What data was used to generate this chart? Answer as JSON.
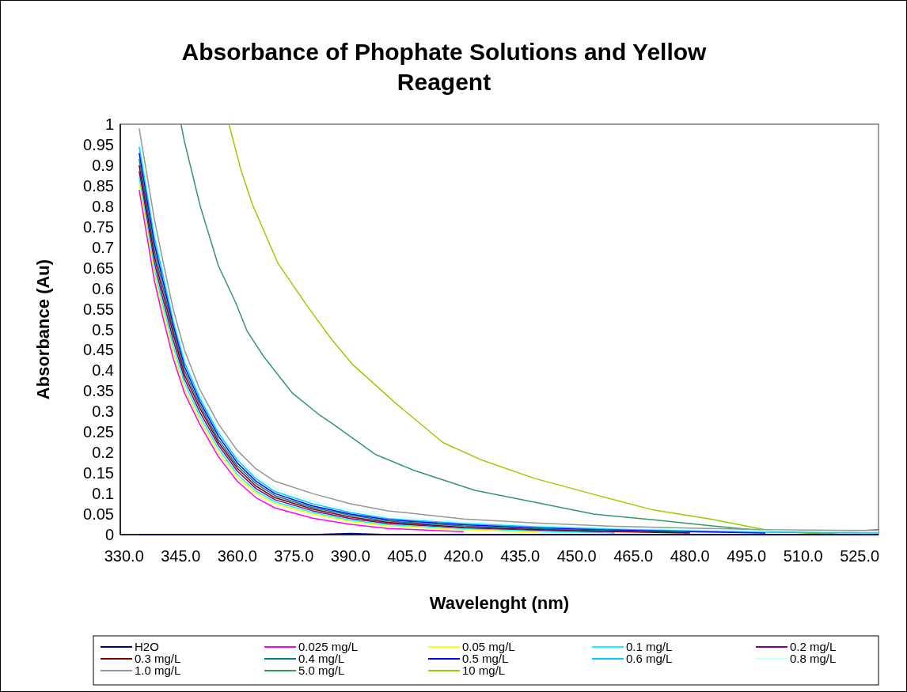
{
  "chart_data": {
    "type": "line",
    "title": "Absorbance of Phophate Solutions and Yellow Reagent",
    "xlabel": "Wavelenght (nm)",
    "ylabel": "Absorbance (Au)",
    "x": [
      334,
      336,
      338,
      340,
      343,
      346,
      350,
      355,
      360,
      365,
      370,
      380,
      390,
      400,
      420,
      440,
      460,
      480,
      500,
      530
    ],
    "xlim": [
      329,
      530
    ],
    "xticks": [
      {
        "value": 330,
        "label": "330.0"
      },
      {
        "value": 345,
        "label": "345.0"
      },
      {
        "value": 360,
        "label": "360.0"
      },
      {
        "value": 375,
        "label": "375.0"
      },
      {
        "value": 390,
        "label": "390.0"
      },
      {
        "value": 405,
        "label": "405.0"
      },
      {
        "value": 420,
        "label": "420.0"
      },
      {
        "value": 435,
        "label": "435.0"
      },
      {
        "value": 450,
        "label": "450.0"
      },
      {
        "value": 465,
        "label": "465.0"
      },
      {
        "value": 480,
        "label": "480.0"
      },
      {
        "value": 495,
        "label": "495.0"
      },
      {
        "value": 510,
        "label": "510.0"
      },
      {
        "value": 525,
        "label": "525.0"
      }
    ],
    "ylim": [
      0,
      1
    ],
    "yticks": [
      0,
      0.05,
      0.1,
      0.15,
      0.2,
      0.25,
      0.3,
      0.35,
      0.4,
      0.45,
      0.5,
      0.55,
      0.6,
      0.65,
      0.7,
      0.75,
      0.8,
      0.85,
      0.9,
      0.95,
      1
    ],
    "grid": false,
    "legend": "bottom",
    "marker": "none",
    "line_style": "solid",
    "series": [
      {
        "name": "H2O",
        "color": "#000080",
        "values": [
          0,
          0,
          0,
          0,
          0,
          0,
          0,
          0,
          0,
          0,
          0,
          0,
          0.003,
          0,
          0,
          0,
          0,
          0,
          0,
          0
        ]
      },
      {
        "name": "0.025 mg/L",
        "color": "#ff00ff",
        "values": [
          0.84,
          0.73,
          0.62,
          0.54,
          0.43,
          0.345,
          0.27,
          0.19,
          0.13,
          0.09,
          0.065,
          0.04,
          0.025,
          0.015,
          0.007,
          null,
          null,
          null,
          null,
          null
        ]
      },
      {
        "name": "0.05 mg/L",
        "color": "#ffff00",
        "values": [
          0.855,
          0.745,
          0.635,
          0.555,
          0.445,
          0.355,
          0.28,
          0.2,
          0.14,
          0.1,
          0.075,
          0.05,
          0.032,
          0.021,
          0.012,
          0.006,
          null,
          null,
          null,
          null
        ]
      },
      {
        "name": "0.1 mg/L",
        "color": "#00ffff",
        "values": [
          0.87,
          0.76,
          0.65,
          0.57,
          0.46,
          0.37,
          0.29,
          0.21,
          0.147,
          0.106,
          0.08,
          0.054,
          0.035,
          0.024,
          0.014,
          0.008,
          0.004,
          null,
          null,
          null
        ]
      },
      {
        "name": "0.2 mg/L",
        "color": "#800080",
        "values": [
          0.885,
          0.775,
          0.665,
          0.585,
          0.475,
          0.38,
          0.3,
          0.218,
          0.155,
          0.112,
          0.085,
          0.058,
          0.039,
          0.027,
          0.016,
          0.01,
          0.005,
          null,
          null,
          null
        ]
      },
      {
        "name": "0.3 mg/L",
        "color": "#800000",
        "values": [
          0.9,
          0.79,
          0.68,
          0.6,
          0.49,
          0.39,
          0.31,
          0.225,
          0.162,
          0.118,
          0.09,
          0.062,
          0.043,
          0.03,
          0.018,
          0.012,
          0.007,
          0.004,
          null,
          null
        ]
      },
      {
        "name": "0.4 mg/L",
        "color": "#008080",
        "values": [
          0.915,
          0.805,
          0.695,
          0.615,
          0.5,
          0.4,
          0.318,
          0.232,
          0.168,
          0.124,
          0.095,
          0.066,
          0.047,
          0.033,
          0.021,
          0.014,
          0.009,
          0.005,
          null,
          null
        ]
      },
      {
        "name": "0.5 mg/L",
        "color": "#0000ff",
        "values": [
          0.93,
          0.82,
          0.71,
          0.63,
          0.51,
          0.41,
          0.326,
          0.24,
          0.175,
          0.13,
          0.1,
          0.07,
          0.05,
          0.036,
          0.024,
          0.016,
          0.011,
          0.007,
          0.004,
          null
        ]
      },
      {
        "name": "0.6 mg/L",
        "color": "#00ccff",
        "values": [
          0.945,
          0.835,
          0.725,
          0.645,
          0.52,
          0.42,
          0.334,
          0.248,
          0.182,
          0.136,
          0.105,
          0.075,
          0.054,
          0.039,
          0.027,
          0.019,
          0.013,
          0.009,
          0.006,
          0.004
        ]
      },
      {
        "name": "0.8 mg/L",
        "color": "#ccffff",
        "values": [
          0.96,
          0.85,
          0.74,
          0.66,
          0.53,
          0.43,
          0.342,
          0.256,
          0.19,
          0.143,
          0.112,
          0.082,
          0.06,
          0.045,
          0.031,
          0.022,
          0.016,
          0.012,
          0.009,
          0.007
        ]
      },
      {
        "name": "1.0 mg/L",
        "color": "#969696",
        "values": [
          0.99,
          0.88,
          0.77,
          0.68,
          0.55,
          0.45,
          0.355,
          0.27,
          0.205,
          0.16,
          0.13,
          0.1,
          0.075,
          0.058,
          0.038,
          0.028,
          0.02,
          0.016,
          0.012,
          0.01
        ]
      },
      {
        "name": "5.0 mg/L",
        "color": "#339966",
        "x": [
          345.1,
          346,
          350.2,
          355,
          359.6,
          362.6,
          367,
          374.6,
          382,
          385,
          396.7,
          407,
          423,
          438.8,
          454.5,
          470.3,
          486,
          501.9,
          517.6,
          530
        ],
        "values": [
          1,
          0.958,
          0.8,
          0.655,
          0.565,
          0.496,
          0.434,
          0.345,
          0.29,
          0.272,
          0.195,
          0.156,
          0.108,
          0.079,
          0.05,
          0.036,
          0.021,
          0.007,
          0.004,
          0.012
        ]
      },
      {
        "name": "10 mg/L",
        "color": "#99cc00",
        "x": [
          357.8,
          361,
          364,
          370.8,
          378.4,
          385,
          390.4,
          402,
          414.6,
          425,
          438.8,
          454.5,
          470.3,
          486,
          501.9,
          512.4,
          530
        ],
        "values": [
          1,
          0.888,
          0.805,
          0.661,
          0.559,
          0.476,
          0.416,
          0.32,
          0.224,
          0.181,
          0.137,
          0.098,
          0.06,
          0.037,
          0.008,
          0.003,
          0.012
        ]
      }
    ]
  }
}
